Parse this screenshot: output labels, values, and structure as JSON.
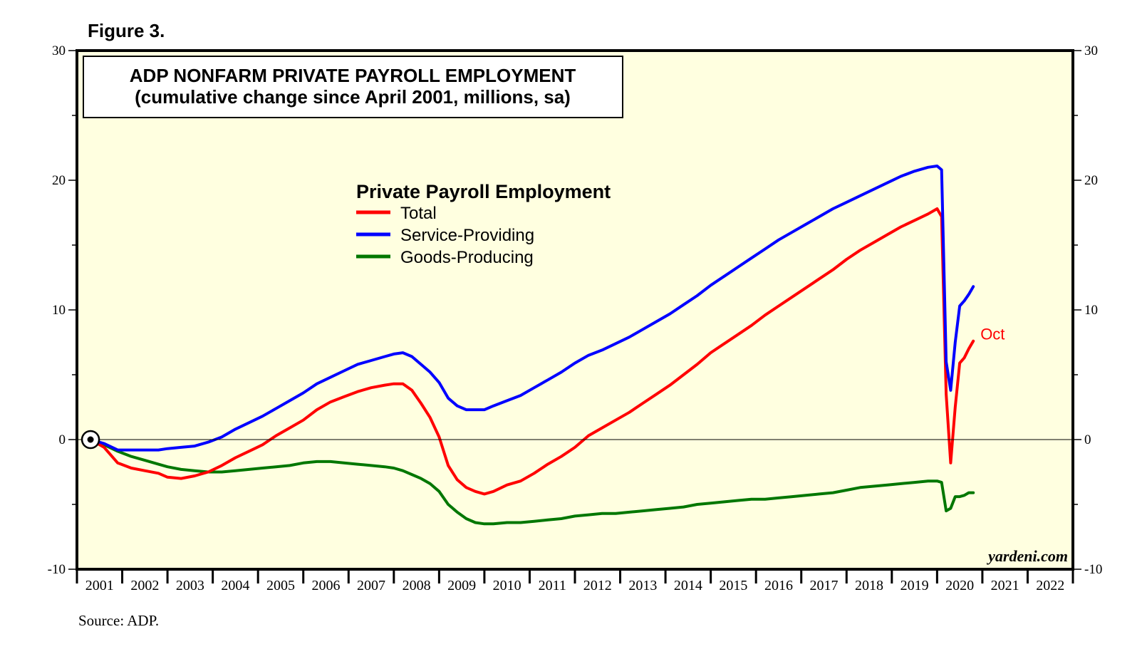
{
  "figure_label": "Figure 3.",
  "source": "Source: ADP.",
  "watermark": "yardeni.com",
  "chart_data": {
    "type": "line",
    "title": "ADP NONFARM PRIVATE PAYROLL EMPLOYMENT",
    "subtitle": "(cumulative change since April 2001, millions, sa)",
    "legend_title": "Private Payroll Employment",
    "legend_position": "upper-middle",
    "xlabel": "",
    "ylabel": "",
    "xlim": [
      2001.0,
      2023.0
    ],
    "ylim": [
      -10,
      30
    ],
    "y_ticks": [
      -10,
      0,
      10,
      20,
      30
    ],
    "x_tick_labels": [
      "2001",
      "2002",
      "2003",
      "2004",
      "2005",
      "2006",
      "2007",
      "2008",
      "2009",
      "2010",
      "2011",
      "2012",
      "2013",
      "2014",
      "2015",
      "2016",
      "2017",
      "2018",
      "2019",
      "2020",
      "2021",
      "2022"
    ],
    "y_axis_both_sides": true,
    "zero_line": true,
    "origin_marker": {
      "x": 2001.3,
      "y": 0
    },
    "end_annotation": {
      "text": "Oct",
      "series": "Total"
    },
    "grid": false,
    "background": "#ffffe0",
    "series": [
      {
        "name": "Total",
        "color": "#ff0000",
        "points": [
          [
            2001.3,
            0
          ],
          [
            2001.6,
            -0.6
          ],
          [
            2001.9,
            -1.8
          ],
          [
            2002.2,
            -2.2
          ],
          [
            2002.5,
            -2.4
          ],
          [
            2002.8,
            -2.6
          ],
          [
            2003.0,
            -2.9
          ],
          [
            2003.3,
            -3.0
          ],
          [
            2003.6,
            -2.8
          ],
          [
            2003.9,
            -2.5
          ],
          [
            2004.2,
            -2.0
          ],
          [
            2004.5,
            -1.4
          ],
          [
            2004.8,
            -0.9
          ],
          [
            2005.1,
            -0.4
          ],
          [
            2005.4,
            0.3
          ],
          [
            2005.7,
            0.9
          ],
          [
            2006.0,
            1.5
          ],
          [
            2006.3,
            2.3
          ],
          [
            2006.6,
            2.9
          ],
          [
            2006.9,
            3.3
          ],
          [
            2007.2,
            3.7
          ],
          [
            2007.5,
            4.0
          ],
          [
            2007.8,
            4.2
          ],
          [
            2008.0,
            4.3
          ],
          [
            2008.2,
            4.3
          ],
          [
            2008.4,
            3.8
          ],
          [
            2008.6,
            2.8
          ],
          [
            2008.8,
            1.7
          ],
          [
            2009.0,
            0.2
          ],
          [
            2009.2,
            -2.0
          ],
          [
            2009.4,
            -3.1
          ],
          [
            2009.6,
            -3.7
          ],
          [
            2009.8,
            -4.0
          ],
          [
            2010.0,
            -4.2
          ],
          [
            2010.2,
            -4.0
          ],
          [
            2010.5,
            -3.5
          ],
          [
            2010.8,
            -3.2
          ],
          [
            2011.1,
            -2.6
          ],
          [
            2011.4,
            -1.9
          ],
          [
            2011.7,
            -1.3
          ],
          [
            2012.0,
            -0.6
          ],
          [
            2012.3,
            0.3
          ],
          [
            2012.6,
            0.9
          ],
          [
            2012.9,
            1.5
          ],
          [
            2013.2,
            2.1
          ],
          [
            2013.5,
            2.8
          ],
          [
            2013.8,
            3.5
          ],
          [
            2014.1,
            4.2
          ],
          [
            2014.4,
            5.0
          ],
          [
            2014.7,
            5.8
          ],
          [
            2015.0,
            6.7
          ],
          [
            2015.3,
            7.4
          ],
          [
            2015.6,
            8.1
          ],
          [
            2015.9,
            8.8
          ],
          [
            2016.2,
            9.6
          ],
          [
            2016.5,
            10.3
          ],
          [
            2016.8,
            11.0
          ],
          [
            2017.1,
            11.7
          ],
          [
            2017.4,
            12.4
          ],
          [
            2017.7,
            13.1
          ],
          [
            2018.0,
            13.9
          ],
          [
            2018.3,
            14.6
          ],
          [
            2018.6,
            15.2
          ],
          [
            2018.9,
            15.8
          ],
          [
            2019.2,
            16.4
          ],
          [
            2019.5,
            16.9
          ],
          [
            2019.8,
            17.4
          ],
          [
            2020.0,
            17.8
          ],
          [
            2020.1,
            17.2
          ],
          [
            2020.2,
            3.5
          ],
          [
            2020.3,
            -1.8
          ],
          [
            2020.4,
            2.5
          ],
          [
            2020.5,
            5.9
          ],
          [
            2020.6,
            6.3
          ],
          [
            2020.7,
            7.0
          ],
          [
            2020.8,
            7.6
          ]
        ]
      },
      {
        "name": "Service-Providing",
        "color": "#0000ff",
        "points": [
          [
            2001.3,
            0
          ],
          [
            2001.6,
            -0.3
          ],
          [
            2001.9,
            -0.8
          ],
          [
            2002.2,
            -0.8
          ],
          [
            2002.5,
            -0.8
          ],
          [
            2002.8,
            -0.8
          ],
          [
            2003.0,
            -0.7
          ],
          [
            2003.3,
            -0.6
          ],
          [
            2003.6,
            -0.5
          ],
          [
            2003.9,
            -0.2
          ],
          [
            2004.2,
            0.2
          ],
          [
            2004.5,
            0.8
          ],
          [
            2004.8,
            1.3
          ],
          [
            2005.1,
            1.8
          ],
          [
            2005.4,
            2.4
          ],
          [
            2005.7,
            3.0
          ],
          [
            2006.0,
            3.6
          ],
          [
            2006.3,
            4.3
          ],
          [
            2006.6,
            4.8
          ],
          [
            2006.9,
            5.3
          ],
          [
            2007.2,
            5.8
          ],
          [
            2007.5,
            6.1
          ],
          [
            2007.8,
            6.4
          ],
          [
            2008.0,
            6.6
          ],
          [
            2008.2,
            6.7
          ],
          [
            2008.4,
            6.4
          ],
          [
            2008.6,
            5.8
          ],
          [
            2008.8,
            5.2
          ],
          [
            2009.0,
            4.4
          ],
          [
            2009.2,
            3.2
          ],
          [
            2009.4,
            2.6
          ],
          [
            2009.6,
            2.3
          ],
          [
            2009.8,
            2.3
          ],
          [
            2010.0,
            2.3
          ],
          [
            2010.2,
            2.6
          ],
          [
            2010.5,
            3.0
          ],
          [
            2010.8,
            3.4
          ],
          [
            2011.1,
            4.0
          ],
          [
            2011.4,
            4.6
          ],
          [
            2011.7,
            5.2
          ],
          [
            2012.0,
            5.9
          ],
          [
            2012.3,
            6.5
          ],
          [
            2012.6,
            6.9
          ],
          [
            2012.9,
            7.4
          ],
          [
            2013.2,
            7.9
          ],
          [
            2013.5,
            8.5
          ],
          [
            2013.8,
            9.1
          ],
          [
            2014.1,
            9.7
          ],
          [
            2014.4,
            10.4
          ],
          [
            2014.7,
            11.1
          ],
          [
            2015.0,
            11.9
          ],
          [
            2015.3,
            12.6
          ],
          [
            2015.6,
            13.3
          ],
          [
            2015.9,
            14.0
          ],
          [
            2016.2,
            14.7
          ],
          [
            2016.5,
            15.4
          ],
          [
            2016.8,
            16.0
          ],
          [
            2017.1,
            16.6
          ],
          [
            2017.4,
            17.2
          ],
          [
            2017.7,
            17.8
          ],
          [
            2018.0,
            18.3
          ],
          [
            2018.3,
            18.8
          ],
          [
            2018.6,
            19.3
          ],
          [
            2018.9,
            19.8
          ],
          [
            2019.2,
            20.3
          ],
          [
            2019.5,
            20.7
          ],
          [
            2019.8,
            21.0
          ],
          [
            2020.0,
            21.1
          ],
          [
            2020.1,
            20.8
          ],
          [
            2020.2,
            6.0
          ],
          [
            2020.3,
            3.8
          ],
          [
            2020.4,
            7.5
          ],
          [
            2020.5,
            10.3
          ],
          [
            2020.6,
            10.7
          ],
          [
            2020.7,
            11.2
          ],
          [
            2020.8,
            11.8
          ]
        ]
      },
      {
        "name": "Goods-Producing",
        "color": "#007700",
        "points": [
          [
            2001.3,
            0
          ],
          [
            2001.6,
            -0.4
          ],
          [
            2001.9,
            -0.9
          ],
          [
            2002.2,
            -1.3
          ],
          [
            2002.5,
            -1.6
          ],
          [
            2002.8,
            -1.9
          ],
          [
            2003.0,
            -2.1
          ],
          [
            2003.3,
            -2.3
          ],
          [
            2003.6,
            -2.4
          ],
          [
            2003.9,
            -2.5
          ],
          [
            2004.2,
            -2.5
          ],
          [
            2004.5,
            -2.4
          ],
          [
            2004.8,
            -2.3
          ],
          [
            2005.1,
            -2.2
          ],
          [
            2005.4,
            -2.1
          ],
          [
            2005.7,
            -2.0
          ],
          [
            2006.0,
            -1.8
          ],
          [
            2006.3,
            -1.7
          ],
          [
            2006.6,
            -1.7
          ],
          [
            2006.9,
            -1.8
          ],
          [
            2007.2,
            -1.9
          ],
          [
            2007.5,
            -2.0
          ],
          [
            2007.8,
            -2.1
          ],
          [
            2008.0,
            -2.2
          ],
          [
            2008.2,
            -2.4
          ],
          [
            2008.4,
            -2.7
          ],
          [
            2008.6,
            -3.0
          ],
          [
            2008.8,
            -3.4
          ],
          [
            2009.0,
            -4.0
          ],
          [
            2009.2,
            -5.0
          ],
          [
            2009.4,
            -5.6
          ],
          [
            2009.6,
            -6.1
          ],
          [
            2009.8,
            -6.4
          ],
          [
            2010.0,
            -6.5
          ],
          [
            2010.2,
            -6.5
          ],
          [
            2010.5,
            -6.4
          ],
          [
            2010.8,
            -6.4
          ],
          [
            2011.1,
            -6.3
          ],
          [
            2011.4,
            -6.2
          ],
          [
            2011.7,
            -6.1
          ],
          [
            2012.0,
            -5.9
          ],
          [
            2012.3,
            -5.8
          ],
          [
            2012.6,
            -5.7
          ],
          [
            2012.9,
            -5.7
          ],
          [
            2013.2,
            -5.6
          ],
          [
            2013.5,
            -5.5
          ],
          [
            2013.8,
            -5.4
          ],
          [
            2014.1,
            -5.3
          ],
          [
            2014.4,
            -5.2
          ],
          [
            2014.7,
            -5.0
          ],
          [
            2015.0,
            -4.9
          ],
          [
            2015.3,
            -4.8
          ],
          [
            2015.6,
            -4.7
          ],
          [
            2015.9,
            -4.6
          ],
          [
            2016.2,
            -4.6
          ],
          [
            2016.5,
            -4.5
          ],
          [
            2016.8,
            -4.4
          ],
          [
            2017.1,
            -4.3
          ],
          [
            2017.4,
            -4.2
          ],
          [
            2017.7,
            -4.1
          ],
          [
            2018.0,
            -3.9
          ],
          [
            2018.3,
            -3.7
          ],
          [
            2018.6,
            -3.6
          ],
          [
            2018.9,
            -3.5
          ],
          [
            2019.2,
            -3.4
          ],
          [
            2019.5,
            -3.3
          ],
          [
            2019.8,
            -3.2
          ],
          [
            2020.0,
            -3.2
          ],
          [
            2020.1,
            -3.3
          ],
          [
            2020.2,
            -5.5
          ],
          [
            2020.3,
            -5.3
          ],
          [
            2020.4,
            -4.4
          ],
          [
            2020.5,
            -4.4
          ],
          [
            2020.6,
            -4.3
          ],
          [
            2020.7,
            -4.1
          ],
          [
            2020.8,
            -4.1
          ]
        ]
      }
    ]
  }
}
